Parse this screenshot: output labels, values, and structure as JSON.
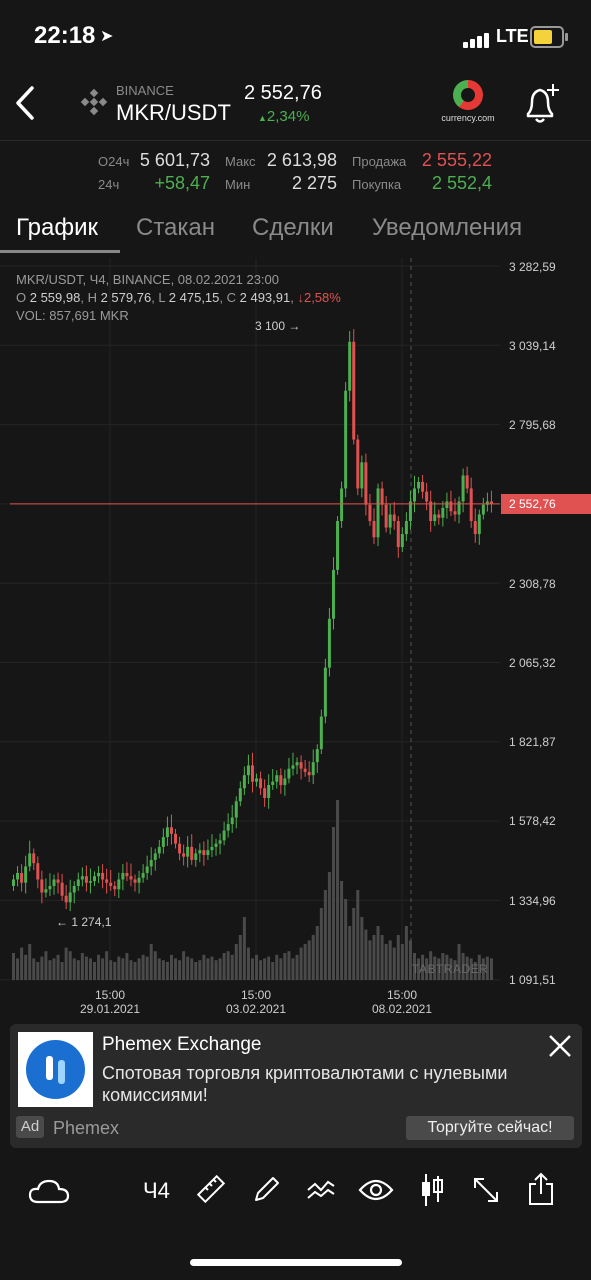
{
  "status_bar": {
    "time": "22:18",
    "network": "LTE"
  },
  "header": {
    "exchange": "BINANCE",
    "pair": "MKR/USDT",
    "price": "2 552,76",
    "change": "2,34%",
    "logo_text": "currency.com"
  },
  "stats": {
    "o24_label": "О24ч",
    "o24_value": "5 601,73",
    "h24_label": "24ч",
    "h24_value": "+58,47",
    "max_label": "Макс",
    "max_value": "2 613,98",
    "min_label": "Мин",
    "min_value": "2 275",
    "sell_label": "Продажа",
    "sell_value": "2 555,22",
    "buy_label": "Покупка",
    "buy_value": "2 552,4"
  },
  "tabs": [
    "График",
    "Стакан",
    "Сделки",
    "Уведомления"
  ],
  "chart_data": {
    "type": "candlestick",
    "header_line": "MKR/USDT, Ч4, BINANCE, 08.02.2021 23:00",
    "ohlc": {
      "o": "2 559,98",
      "h": "2 579,76",
      "l": "2 475,15",
      "c": "2 493,91",
      "change": "↓2,58%"
    },
    "volume_line": "VOL: 857,691 MKR",
    "y_ticks": [
      "3 282,59",
      "3 039,14",
      "2 795,68",
      "2 552,76",
      "2 308,78",
      "2 065,32",
      "1 821,87",
      "1 578,42",
      "1 334,96",
      "1 091,51"
    ],
    "x_ticks": [
      {
        "time": "15:00",
        "date": "29.01.2021"
      },
      {
        "time": "15:00",
        "date": "03.02.2021"
      },
      {
        "time": "15:00",
        "date": "08.02.2021"
      }
    ],
    "current_price": "2 552,76",
    "max_label": "3 100",
    "min_label": "1 274,1",
    "watermark": "TABTRADER",
    "ylim": [
      1091.51,
      3282.59
    ],
    "close_prices": [
      1400,
      1420,
      1390,
      1440,
      1480,
      1450,
      1400,
      1360,
      1370,
      1380,
      1400,
      1390,
      1350,
      1330,
      1360,
      1380,
      1400,
      1410,
      1390,
      1395,
      1410,
      1420,
      1400,
      1390,
      1380,
      1370,
      1400,
      1420,
      1410,
      1400,
      1390,
      1405,
      1420,
      1440,
      1460,
      1480,
      1500,
      1530,
      1560,
      1540,
      1510,
      1480,
      1470,
      1500,
      1460,
      1480,
      1490,
      1475,
      1490,
      1500,
      1510,
      1520,
      1550,
      1570,
      1590,
      1640,
      1680,
      1720,
      1750,
      1700,
      1710,
      1680,
      1650,
      1690,
      1700,
      1720,
      1690,
      1710,
      1740,
      1750,
      1760,
      1740,
      1730,
      1720,
      1760,
      1800,
      1900,
      2050,
      2200,
      2350,
      2500,
      2600,
      2900,
      3050,
      2750,
      2600,
      2680,
      2550,
      2500,
      2450,
      2600,
      2550,
      2480,
      2520,
      2500,
      2420,
      2460,
      2500,
      2560,
      2600,
      2620,
      2590,
      2560,
      2500,
      2520,
      2510,
      2540,
      2560,
      2530,
      2520,
      2560,
      2640,
      2600,
      2500,
      2460,
      2520,
      2550,
      2560,
      2553
    ],
    "volumes": [
      0.15,
      0.12,
      0.18,
      0.14,
      0.2,
      0.12,
      0.1,
      0.13,
      0.16,
      0.11,
      0.12,
      0.14,
      0.1,
      0.18,
      0.16,
      0.12,
      0.11,
      0.15,
      0.13,
      0.12,
      0.1,
      0.14,
      0.12,
      0.16,
      0.11,
      0.1,
      0.13,
      0.12,
      0.15,
      0.11,
      0.1,
      0.12,
      0.14,
      0.13,
      0.2,
      0.16,
      0.12,
      0.11,
      0.1,
      0.14,
      0.12,
      0.11,
      0.16,
      0.13,
      0.12,
      0.1,
      0.11,
      0.14,
      0.12,
      0.13,
      0.11,
      0.12,
      0.15,
      0.16,
      0.14,
      0.2,
      0.25,
      0.35,
      0.18,
      0.12,
      0.14,
      0.11,
      0.12,
      0.13,
      0.1,
      0.14,
      0.12,
      0.15,
      0.16,
      0.12,
      0.14,
      0.18,
      0.2,
      0.22,
      0.25,
      0.3,
      0.4,
      0.5,
      0.6,
      0.85,
      1.0,
      0.55,
      0.45,
      0.3,
      0.4,
      0.5,
      0.35,
      0.28,
      0.22,
      0.25,
      0.3,
      0.25,
      0.2,
      0.22,
      0.18,
      0.25,
      0.2,
      0.3,
      0.22,
      0.15,
      0.12,
      0.14,
      0.12,
      0.16,
      0.13,
      0.12,
      0.15,
      0.14,
      0.12,
      0.11,
      0.2,
      0.15,
      0.13,
      0.12,
      0.1,
      0.14,
      0.12,
      0.13,
      0.12
    ]
  },
  "ad": {
    "title": "Phemex Exchange",
    "description": "Спотовая торговля криптовалютами с нулевыми комиссиями!",
    "tag": "Ad",
    "brand": "Phemex",
    "cta": "Торгуйте сейчас!"
  },
  "toolbar": {
    "timeframe": "Ч4"
  },
  "colors": {
    "up": "#4caf50",
    "down": "#e05252",
    "background": "#161616"
  }
}
